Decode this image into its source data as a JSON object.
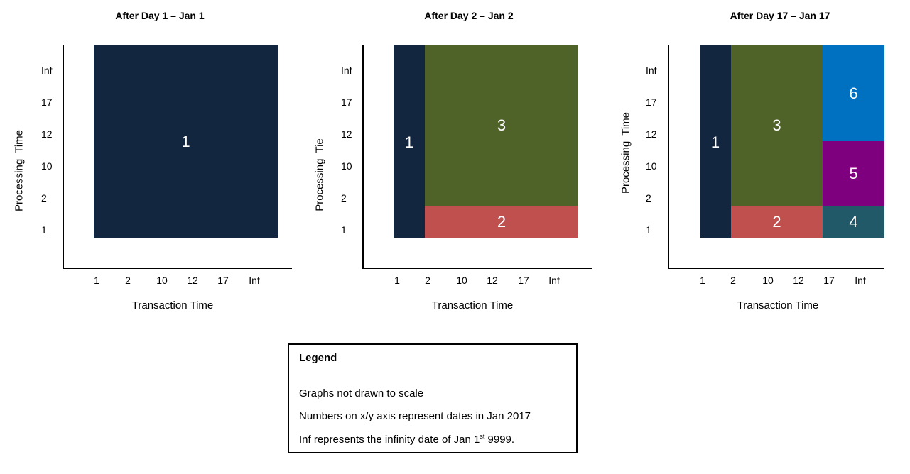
{
  "panels": [
    {
      "title": "After Day 1 – Jan 1",
      "ylabel": "Processing  Time",
      "xlabel": "Transaction Time",
      "yticks": [
        "Inf",
        "17",
        "12",
        "10",
        "2",
        "1"
      ],
      "xticks": [
        "1",
        "2",
        "10",
        "12",
        "17",
        "Inf"
      ],
      "regions": [
        {
          "label": "1",
          "color": "#13263f"
        }
      ]
    },
    {
      "title": "After Day 2 – Jan 2",
      "ylabel": "Processing  Tie",
      "xlabel": "Transaction Time",
      "yticks": [
        "Inf",
        "17",
        "12",
        "10",
        "2",
        "1"
      ],
      "xticks": [
        "1",
        "2",
        "10",
        "12",
        "17",
        "Inf"
      ],
      "regions": [
        {
          "label": "1",
          "color": "#13263f"
        },
        {
          "label": "3",
          "color": "#4f6228"
        },
        {
          "label": "2",
          "color": "#c0504d"
        }
      ]
    },
    {
      "title": "After Day 17 – Jan 17",
      "ylabel": "Processing  Time",
      "xlabel": "Transaction Time",
      "yticks": [
        "Inf",
        "17",
        "12",
        "10",
        "2",
        "1"
      ],
      "xticks": [
        "1",
        "2",
        "10",
        "12",
        "17",
        "Inf"
      ],
      "regions": [
        {
          "label": "1",
          "color": "#13263f"
        },
        {
          "label": "3",
          "color": "#4f6228"
        },
        {
          "label": "2",
          "color": "#c0504d"
        },
        {
          "label": "6",
          "color": "#0070c0"
        },
        {
          "label": "5",
          "color": "#7f007f"
        },
        {
          "label": "4",
          "color": "#215968"
        }
      ]
    }
  ],
  "legend": {
    "title": "Legend",
    "line1": "Graphs not drawn to scale",
    "line2": "Numbers on x/y axis represent dates in Jan 2017",
    "line3_pre": "Inf represents the infinity date of Jan 1",
    "line3_sup": "st",
    "line3_post": " 9999."
  }
}
